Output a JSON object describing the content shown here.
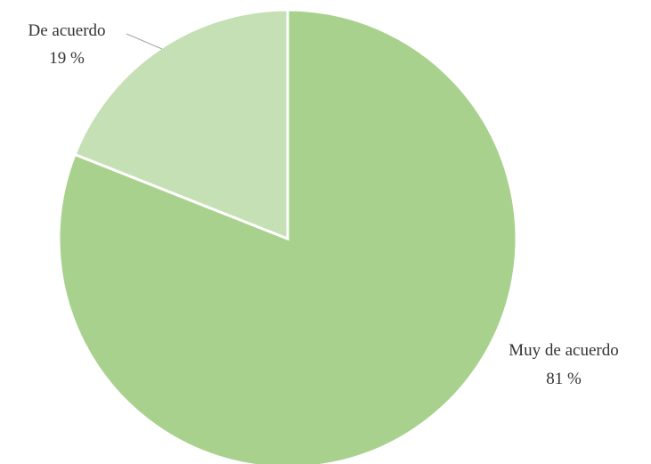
{
  "chart_data": {
    "type": "pie",
    "categories": [
      "Muy de acuerdo",
      "De acuerdo"
    ],
    "values": [
      81,
      19
    ],
    "value_labels": [
      "81 %",
      "19 %"
    ],
    "colors": [
      "#a9d18e",
      "#c5e0b4"
    ],
    "start_angle": "12 o'clock",
    "direction": "clockwise",
    "title": "",
    "legend": "none"
  }
}
